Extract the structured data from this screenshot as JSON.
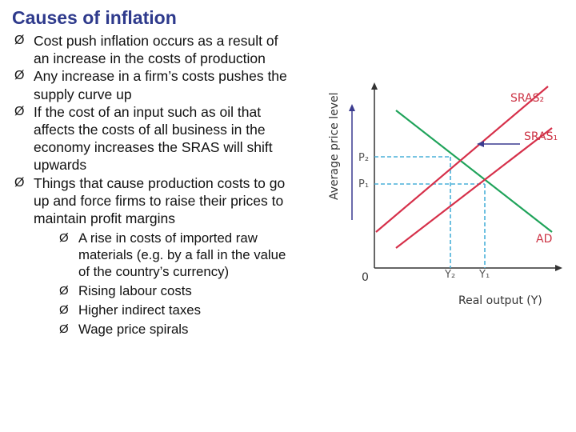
{
  "slide": {
    "title": "Causes of inflation",
    "bullets": [
      "Cost push inflation occurs as a result of an increase in the costs of production",
      "Any increase in a firm’s costs pushes the supply curve up",
      "If the cost of an input such as oil that affects the costs of all business in the economy increases the SRAS will shift upwards",
      "Things that cause production costs to  go up and force firms to raise their prices to maintain profit margins"
    ],
    "subbullets": [
      "A rise in costs of imported raw materials (e.g. by a fall in the value of the country’s currency)",
      "Rising labour costs",
      "Higher indirect taxes",
      "Wage price spirals"
    ],
    "bullet_glyph": "Ø"
  },
  "diagram": {
    "y_axis_label": "Average price level",
    "x_axis_label": "Real output (Y)",
    "origin_label": "0",
    "price_labels": [
      "P₂",
      "P₁"
    ],
    "output_labels": [
      "Y₂",
      "Y₁"
    ],
    "curve_labels": {
      "sras2": "SRAS₂",
      "sras1": "SRAS₁",
      "ad": "AD"
    },
    "colors": {
      "sras": "#d6304a",
      "ad": "#1fa35a",
      "axis": "#333333",
      "arrow": "#3b3b8f",
      "label": "#cc3344",
      "ad_label": "#cc3344"
    }
  }
}
